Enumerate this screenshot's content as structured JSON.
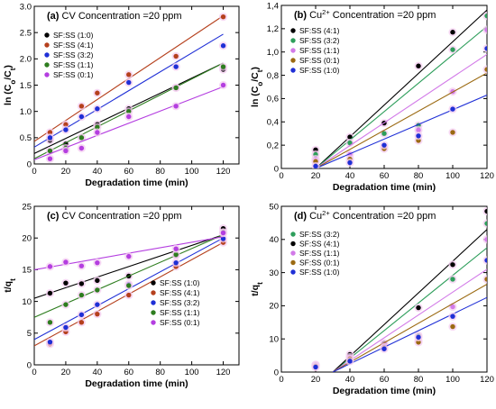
{
  "chart_data": [
    {
      "type": "scatter",
      "panel_label": "(a)",
      "title": "CV Concentration =20 ppm",
      "xlabel": "Degradation time (min)",
      "ylabel": "ln (C",
      "ylabel_sub1": "o",
      "ylabel_mid": "/C",
      "ylabel_sub2": "t",
      "ylabel_end": ")",
      "xlim": [
        0,
        130
      ],
      "ylim": [
        0,
        3.0
      ],
      "xticks": [
        0,
        20,
        40,
        60,
        80,
        100,
        120
      ],
      "yticks": [
        0,
        0.5,
        1.0,
        1.5,
        2.0,
        2.5,
        3.0
      ],
      "ytick_labels": [
        "0",
        "0.5",
        "1.0",
        "1.5",
        "2.0",
        "2.5",
        "3.0"
      ],
      "legend_position": "top-left",
      "series": [
        {
          "name": "SF:SS (1:0)",
          "color": "#000000",
          "x": [
            10,
            20,
            30,
            40,
            60,
            90,
            120
          ],
          "y": [
            0.45,
            0.38,
            0.5,
            0.75,
            1.05,
            1.45,
            1.8
          ],
          "fit": [
            0.2,
            1.92
          ]
        },
        {
          "name": "SF:SS (4:1)",
          "color": "#b5401d",
          "x": [
            10,
            20,
            30,
            40,
            60,
            90,
            120
          ],
          "y": [
            0.6,
            0.75,
            1.1,
            1.35,
            1.7,
            2.05,
            2.8
          ],
          "fit": [
            0.43,
            2.82
          ]
        },
        {
          "name": "SF:SS (3:2)",
          "color": "#1f2fd6",
          "x": [
            10,
            20,
            30,
            40,
            60,
            90,
            120
          ],
          "y": [
            0.5,
            0.65,
            0.9,
            1.05,
            1.55,
            1.85,
            2.25
          ],
          "fit": [
            0.32,
            2.47
          ]
        },
        {
          "name": "SF:SS (1:1)",
          "color": "#2e7d1f",
          "x": [
            10,
            20,
            30,
            40,
            60,
            90,
            120
          ],
          "y": [
            0.25,
            0.3,
            0.5,
            0.7,
            1.0,
            1.45,
            1.85
          ],
          "fit": [
            0.1,
            1.92
          ]
        },
        {
          "name": "SF:SS (0:1)",
          "color": "#b43ee0",
          "x": [
            10,
            20,
            30,
            40,
            60,
            90,
            120
          ],
          "y": [
            0.1,
            0.25,
            0.3,
            0.6,
            0.9,
            1.1,
            1.5
          ],
          "fit": [
            0.08,
            1.47
          ]
        }
      ]
    },
    {
      "type": "scatter",
      "panel_label": "(b)",
      "title_pre": "Cu",
      "title_sup": "2+",
      "title_post": " Concentration =20 ppm",
      "xlabel": "Degradation time (min)",
      "ylabel": "ln (C",
      "ylabel_sub1": "o",
      "ylabel_mid": "/C",
      "ylabel_sub2": "t",
      "ylabel_end": ")",
      "xlim": [
        0,
        120
      ],
      "ylim": [
        0,
        1.4
      ],
      "xticks": [
        0,
        20,
        40,
        60,
        80,
        100,
        120
      ],
      "yticks": [
        0,
        0.2,
        0.4,
        0.6,
        0.8,
        1.0,
        1.2,
        1.4
      ],
      "ytick_labels": [
        "0",
        "0,2",
        "0,4",
        "0,6",
        "0,8",
        "1,0",
        "1,2",
        "1,4"
      ],
      "legend_position": "top-left",
      "series": [
        {
          "name": "SF:SS (4:1)",
          "color": "#000000",
          "x": [
            20,
            40,
            60,
            80,
            100
          ],
          "y": [
            0.16,
            0.27,
            0.39,
            0.88,
            1.17
          ],
          "fit_x": [
            20,
            120
          ],
          "fit": [
            0.0,
            1.36
          ]
        },
        {
          "name": "SF:SS (3:2)",
          "color": "#2e9e5b",
          "x": [
            20,
            40,
            60,
            80,
            100,
            120
          ],
          "y": [
            0.12,
            0.22,
            0.3,
            0.37,
            1.02,
            1.31
          ],
          "fit_x": [
            20,
            120
          ],
          "fit": [
            0.0,
            1.22
          ]
        },
        {
          "name": "SF:SS (1:1)",
          "color": "#d27ae8",
          "x": [
            20,
            40,
            60,
            80,
            100,
            120
          ],
          "y": [
            0.08,
            0.12,
            0.18,
            0.33,
            0.66,
            1.19
          ],
          "fit_x": [
            20,
            120
          ],
          "fit": [
            0.0,
            0.98
          ]
        },
        {
          "name": "SF:SS (0:1)",
          "color": "#9b6a12",
          "x": [
            20,
            40,
            60,
            80,
            100,
            120
          ],
          "y": [
            0.06,
            0.08,
            0.17,
            0.24,
            0.31,
            0.85
          ],
          "fit_x": [
            20,
            120
          ],
          "fit": [
            0.0,
            0.82
          ]
        },
        {
          "name": "SF:SS (1:0)",
          "color": "#1f2fd6",
          "x": [
            20,
            40,
            60,
            80,
            100,
            120
          ],
          "y": [
            0.02,
            0.05,
            0.2,
            0.28,
            0.51,
            1.03
          ],
          "fit_x": [
            20,
            120
          ],
          "fit": [
            0.0,
            0.63
          ]
        }
      ]
    },
    {
      "type": "scatter",
      "panel_label": "(c)",
      "title": "CV Concentration =20 ppm",
      "xlabel": "Degradation time (min)",
      "ylabel": "t/q",
      "ylabel_sub": "t",
      "xlim": [
        0,
        130
      ],
      "ylim": [
        0,
        25
      ],
      "xticks": [
        0,
        20,
        40,
        60,
        80,
        100,
        120
      ],
      "yticks": [
        0,
        5,
        10,
        15,
        20,
        25
      ],
      "ytick_labels": [
        "0",
        "5",
        "10",
        "15",
        "20",
        "25"
      ],
      "legend_position": "bottom-right",
      "series": [
        {
          "name": "SF:SS (1:0)",
          "color": "#000000",
          "x": [
            10,
            20,
            30,
            40,
            60,
            90,
            120
          ],
          "y": [
            11.3,
            12.9,
            12.8,
            13.3,
            14.0,
            17.3,
            21.5
          ],
          "fit": [
            10.5,
            20.5
          ]
        },
        {
          "name": "SF:SS (4:1)",
          "color": "#b5401d",
          "x": [
            10,
            20,
            30,
            40,
            60,
            90,
            120
          ],
          "y": [
            3.3,
            5.2,
            6.7,
            8.0,
            11.0,
            15.5,
            19.3
          ],
          "fit": [
            3.0,
            19.3
          ]
        },
        {
          "name": "SF:SS (3:2)",
          "color": "#1f2fd6",
          "x": [
            10,
            20,
            30,
            40,
            60,
            90,
            120
          ],
          "y": [
            3.6,
            5.9,
            7.9,
            9.5,
            12.7,
            16.1,
            19.9
          ],
          "fit": [
            4.0,
            20.0
          ]
        },
        {
          "name": "SF:SS (1:1)",
          "color": "#2e7d1f",
          "x": [
            10,
            20,
            30,
            40,
            60,
            90,
            120
          ],
          "y": [
            6.7,
            9.5,
            11.0,
            11.8,
            12.5,
            17.4,
            20.9
          ],
          "fit": [
            7.5,
            20.5
          ]
        },
        {
          "name": "SF:SS (0:1)",
          "color": "#b43ee0",
          "x": [
            10,
            20,
            30,
            40,
            60,
            90,
            120
          ],
          "y": [
            15.5,
            16.2,
            15.6,
            16.1,
            17.1,
            18.3,
            20.8
          ],
          "fit": [
            15.0,
            20.2
          ]
        }
      ]
    },
    {
      "type": "scatter",
      "panel_label": "(d)",
      "title_pre": "Cu",
      "title_sup": "2+",
      "title_post": " Concentration =20 ppm",
      "xlabel": "Degradation time (min)",
      "ylabel": "t/q",
      "ylabel_sub": "t",
      "xlim": [
        0,
        120
      ],
      "ylim": [
        0,
        50
      ],
      "xticks": [
        0,
        20,
        40,
        60,
        80,
        100,
        120
      ],
      "yticks": [
        0,
        10,
        20,
        30,
        40,
        50
      ],
      "ytick_labels": [
        "0",
        "10",
        "20",
        "30",
        "40",
        "50"
      ],
      "legend_position": "top-left",
      "series": [
        {
          "name": "SF:SS (3:2)",
          "color": "#2e9e5b",
          "x": [
            20,
            40,
            60,
            80,
            100,
            120
          ],
          "y": [
            2.0,
            4.4,
            8.0,
            11.0,
            28.0,
            44.8
          ],
          "fit_x": [
            30,
            120
          ],
          "fit": [
            0.0,
            37.5
          ]
        },
        {
          "name": "SF:SS (4:1)",
          "color": "#000000",
          "x": [
            20,
            40,
            60,
            80,
            100,
            120
          ],
          "y": [
            2.2,
            5.3,
            8.7,
            19.4,
            32.4,
            48.5
          ],
          "fit_x": [
            30,
            120
          ],
          "fit": [
            0.0,
            43.0
          ]
        },
        {
          "name": "SF:SS (1:1)",
          "color": "#d27ae8",
          "x": [
            20,
            40,
            60,
            80,
            100,
            120
          ],
          "y": [
            2.0,
            4.5,
            8.3,
            9.5,
            19.7,
            40.0
          ],
          "fit_x": [
            30,
            120
          ],
          "fit": [
            0.0,
            31.0
          ]
        },
        {
          "name": "SF:SS (0:1)",
          "color": "#9b6a12",
          "x": [
            20,
            40,
            60,
            80,
            100,
            120
          ],
          "y": [
            1.8,
            4.0,
            7.5,
            9.0,
            13.7,
            28.0
          ],
          "fit_x": [
            30,
            120
          ],
          "fit": [
            0.0,
            26.5
          ]
        },
        {
          "name": "SF:SS (1:0)",
          "color": "#1f2fd6",
          "x": [
            20,
            40,
            60,
            80,
            100,
            120
          ],
          "y": [
            1.5,
            3.3,
            7.0,
            10.5,
            16.8,
            33.7
          ],
          "fit_x": [
            30,
            120
          ],
          "fit": [
            0.0,
            22.5
          ]
        }
      ]
    }
  ]
}
